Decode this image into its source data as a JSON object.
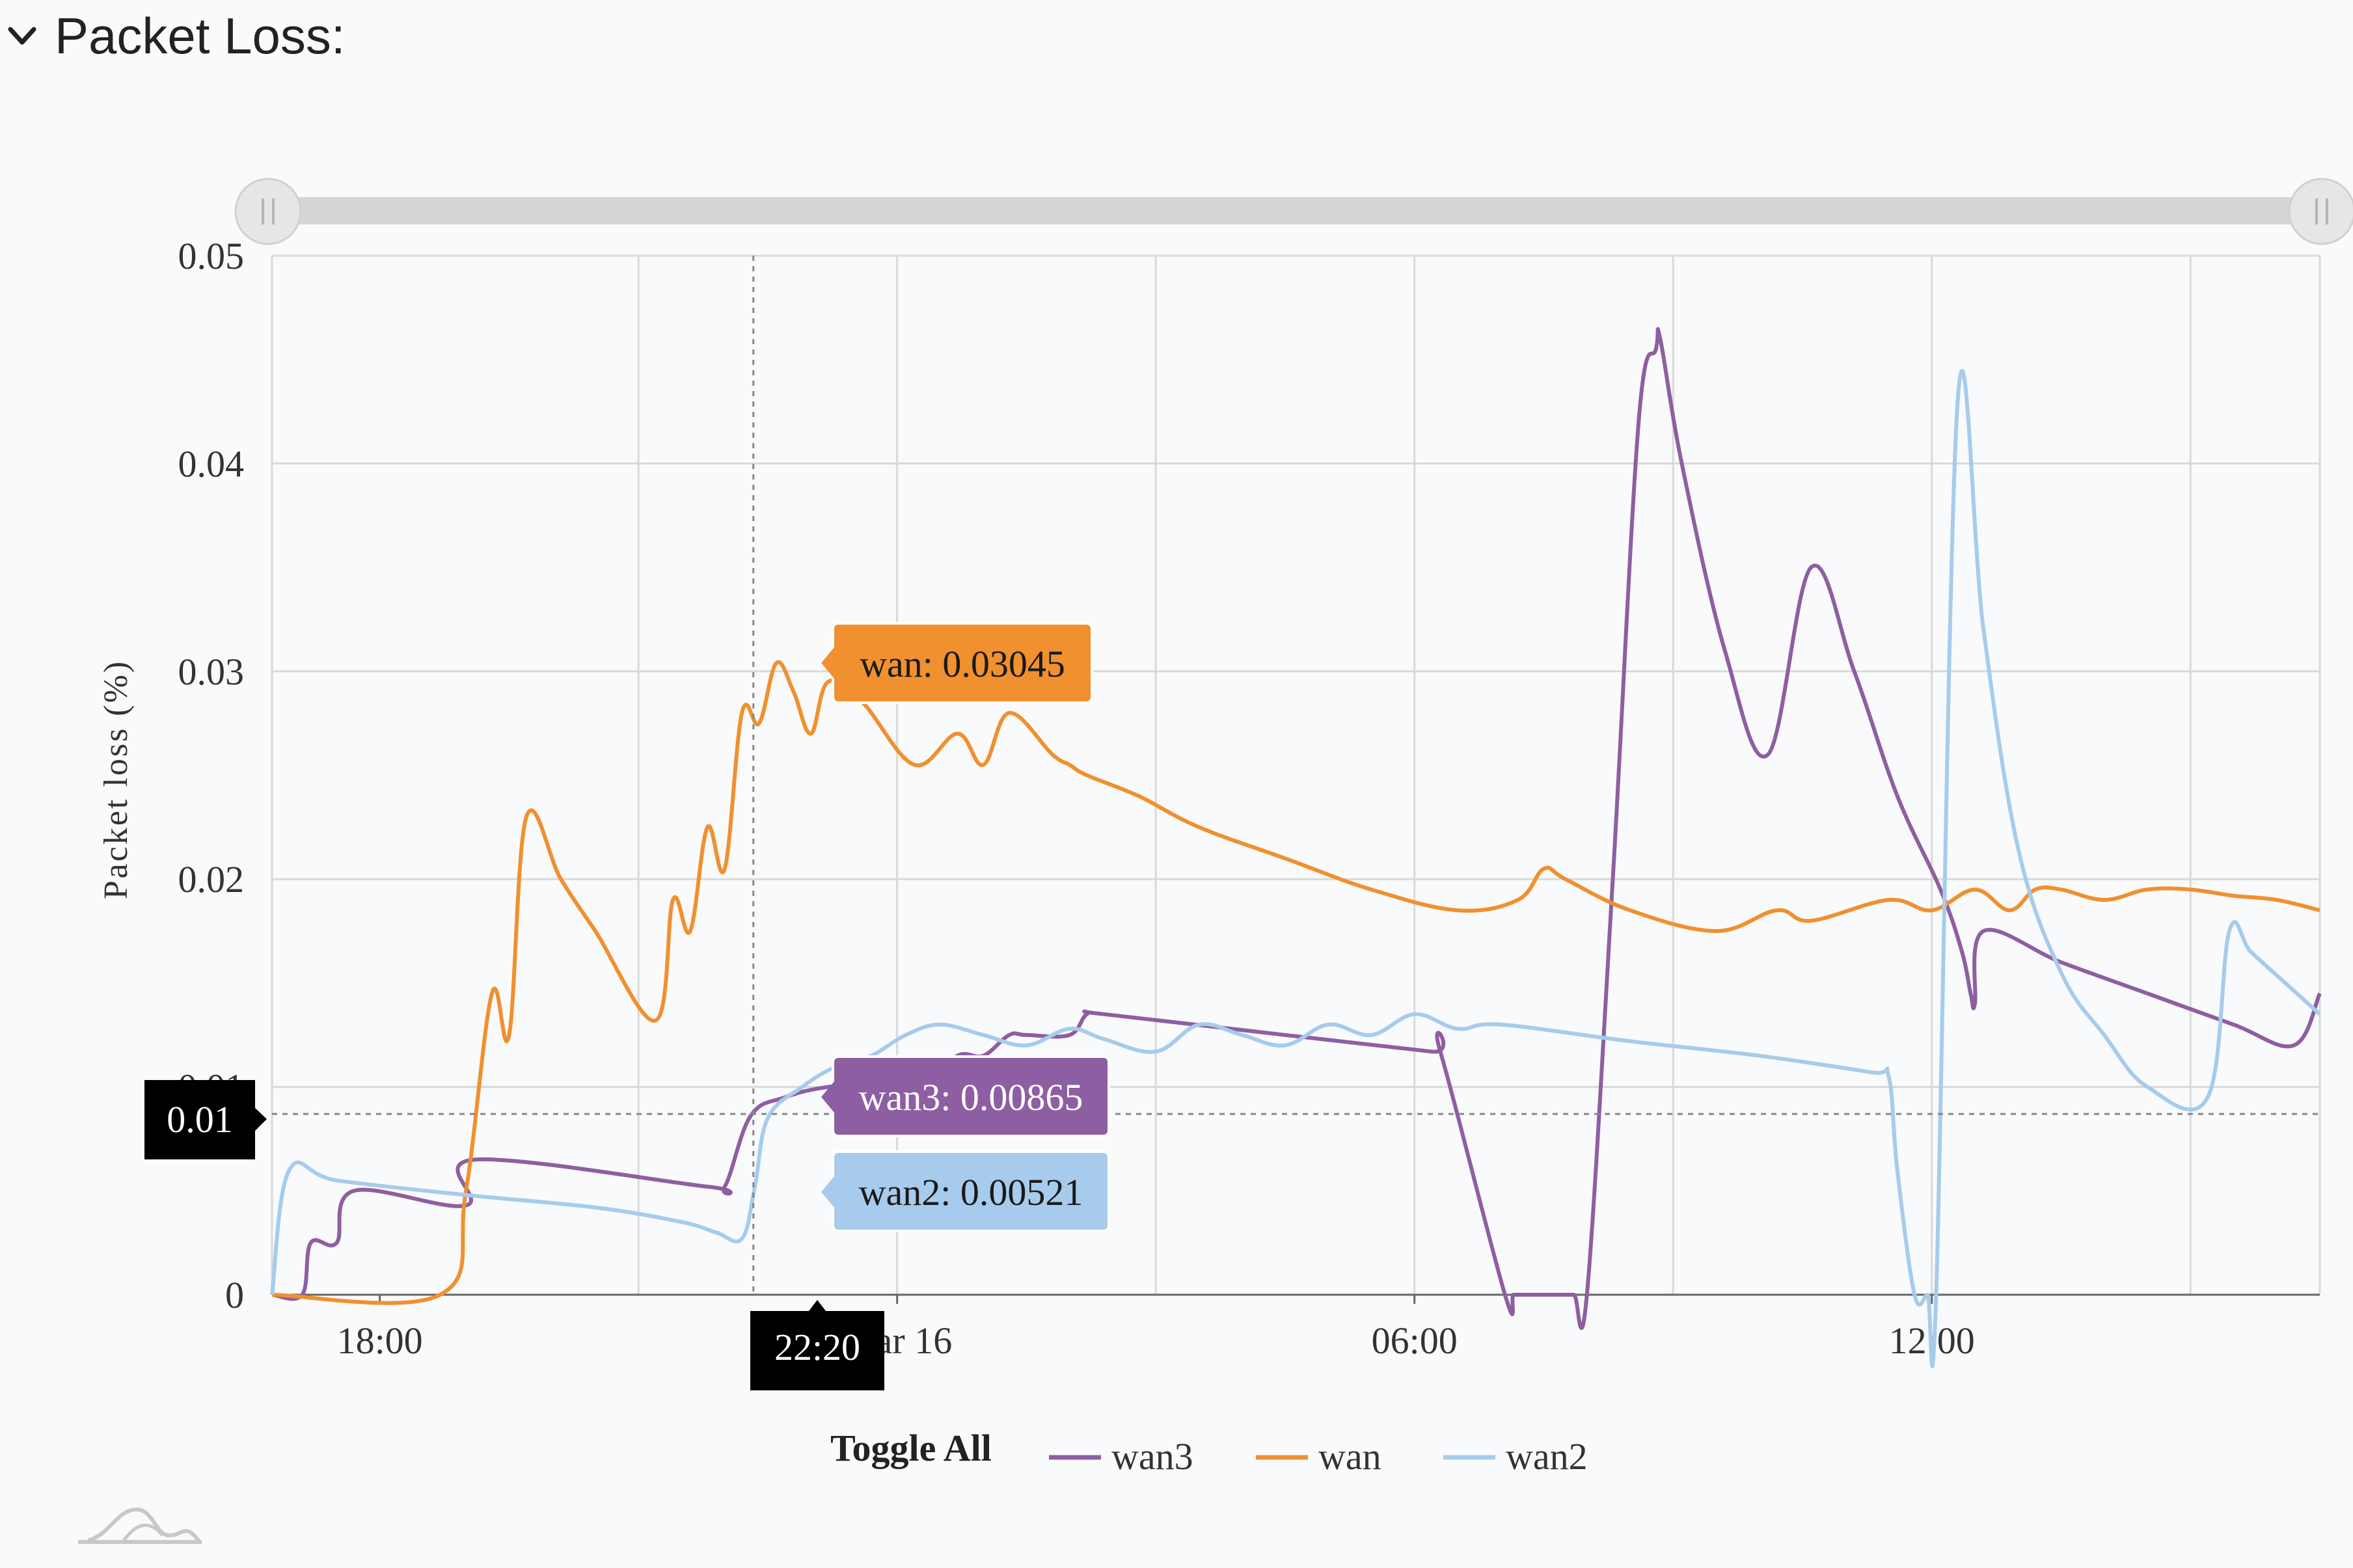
{
  "panel": {
    "title": "Packet Loss:",
    "toggle_icon": "chevron-down-icon"
  },
  "colors": {
    "wan3": "#8e5ea2",
    "wan": "#f0902f",
    "wan2": "#a7cbec",
    "grid": "#d9d9d9",
    "scrollbar": "#d6d6d6",
    "crosshair_label_bg": "#000000"
  },
  "legend": {
    "toggle_all": "Toggle All",
    "position": "bottom-center"
  },
  "footer_icon": "chart-logo-icon",
  "crosshair": {
    "x_label": "22:20",
    "y_label": "0.01",
    "x_value": 22.333,
    "y_value": 0.0087
  },
  "tooltips": [
    {
      "series": "wan",
      "text": "wan: 0.03045"
    },
    {
      "series": "wan3",
      "text": "wan3: 0.00865"
    },
    {
      "series": "wan2",
      "text": "wan2: 0.00521"
    }
  ],
  "chart_data": {
    "type": "line",
    "title": "",
    "xlabel": "",
    "ylabel": "Packet loss (%)",
    "x_unit": "hours since 00:00 Mar 15",
    "xlim": [
      16.75,
      40.5
    ],
    "ylim": [
      0,
      0.05
    ],
    "y_ticks": [
      "0",
      "0.01",
      "0.02",
      "0.03",
      "0.04",
      "0.05"
    ],
    "y_tick_values": [
      0,
      0.01,
      0.02,
      0.03,
      0.04,
      0.05
    ],
    "x_ticks": [
      "18:00",
      "Mar 16",
      "06:00",
      "12:00"
    ],
    "x_tick_values": [
      18,
      24,
      30,
      36
    ],
    "x_grid_values": [
      16.75,
      21,
      24,
      27,
      30,
      33,
      36,
      39,
      40.5
    ],
    "grid": true,
    "legend_position": "bottom",
    "series": [
      {
        "name": "wan3",
        "x": [
          16.75,
          17.1,
          17.2,
          17.5,
          17.7,
          19.0,
          19.1,
          21.8,
          22.0,
          22.3,
          22.7,
          23.2,
          24.0,
          24.3,
          24.7,
          25.0,
          25.3,
          25.5,
          26.0,
          26.2,
          26.4,
          28.5,
          30.2,
          30.3,
          31.05,
          31.15,
          31.3,
          31.7,
          31.85,
          32.0,
          32.3,
          32.6,
          32.8,
          32.85,
          33.1,
          33.6,
          34.1,
          34.6,
          35.1,
          35.6,
          36.1,
          36.35,
          36.45,
          36.5,
          36.6,
          37.5,
          38.5,
          39.5,
          40.2,
          40.5
        ],
        "values": [
          0,
          0,
          0.0025,
          0.0025,
          0.005,
          0.0043,
          0.0065,
          0.0052,
          0.0052,
          0.0086,
          0.0095,
          0.01,
          0.0103,
          0.01,
          0.0115,
          0.0115,
          0.0125,
          0.0125,
          0.0125,
          0.0135,
          0.0135,
          0.0125,
          0.0117,
          0.0117,
          0,
          0,
          0,
          0,
          0,
          0,
          0.02,
          0.042,
          0.0455,
          0.046,
          0.04,
          0.031,
          0.026,
          0.035,
          0.03,
          0.024,
          0.0195,
          0.0165,
          0.0145,
          0.014,
          0.0175,
          0.016,
          0.0145,
          0.013,
          0.012,
          0.0145
        ]
      },
      {
        "name": "wan",
        "x": [
          16.75,
          18.7,
          19.0,
          19.3,
          19.5,
          19.7,
          20.1,
          20.5,
          21.2,
          21.4,
          21.6,
          21.8,
          22.0,
          22.2,
          22.4,
          22.6,
          22.8,
          23.0,
          23.2,
          23.6,
          24.2,
          24.7,
          25.0,
          25.3,
          25.8,
          26.0,
          26.2,
          26.8,
          27.5,
          28.5,
          29.5,
          30.5,
          31.2,
          31.5,
          31.75,
          32.5,
          33.5,
          34.2,
          34.6,
          35.5,
          36.0,
          36.5,
          36.9,
          37.2,
          37.5,
          38.0,
          38.5,
          39.0,
          39.5,
          40.0,
          40.5
        ],
        "values": [
          0,
          0,
          0.005,
          0.0145,
          0.0125,
          0.023,
          0.02,
          0.0175,
          0.0132,
          0.019,
          0.0175,
          0.0225,
          0.0205,
          0.028,
          0.0275,
          0.0304,
          0.029,
          0.027,
          0.0295,
          0.0285,
          0.0255,
          0.027,
          0.0255,
          0.028,
          0.026,
          0.0255,
          0.025,
          0.024,
          0.0225,
          0.021,
          0.0195,
          0.0185,
          0.019,
          0.0205,
          0.02,
          0.0185,
          0.0175,
          0.0185,
          0.018,
          0.019,
          0.0185,
          0.0195,
          0.0185,
          0.0195,
          0.0195,
          0.019,
          0.0195,
          0.0195,
          0.0192,
          0.019,
          0.0185
        ]
      },
      {
        "name": "wan2",
        "x": [
          16.75,
          16.95,
          17.5,
          19.0,
          20.5,
          21.5,
          21.9,
          22.2,
          22.35,
          22.5,
          22.9,
          23.3,
          23.7,
          24.1,
          24.5,
          25.0,
          25.5,
          26.0,
          26.4,
          27.0,
          27.5,
          28.0,
          28.5,
          29.0,
          29.5,
          30.0,
          30.5,
          31.0,
          32.5,
          34.0,
          35.3,
          35.5,
          35.6,
          35.8,
          35.95,
          36.05,
          36.3,
          36.6,
          37.0,
          37.5,
          38.0,
          38.5,
          39.2,
          39.45,
          39.7,
          40.1,
          40.5
        ],
        "values": [
          0,
          0.006,
          0.0055,
          0.0048,
          0.0042,
          0.0035,
          0.003,
          0.0027,
          0.0052,
          0.0085,
          0.01,
          0.011,
          0.0115,
          0.0125,
          0.013,
          0.0125,
          0.012,
          0.0128,
          0.0123,
          0.0117,
          0.013,
          0.0125,
          0.012,
          0.013,
          0.0125,
          0.0135,
          0.0128,
          0.013,
          0.0122,
          0.0115,
          0.0107,
          0.0105,
          0.006,
          0,
          0,
          0,
          0.043,
          0.032,
          0.0215,
          0.0155,
          0.0125,
          0.01,
          0.0095,
          0.0175,
          0.0165,
          0.015,
          0.0135
        ]
      }
    ]
  }
}
